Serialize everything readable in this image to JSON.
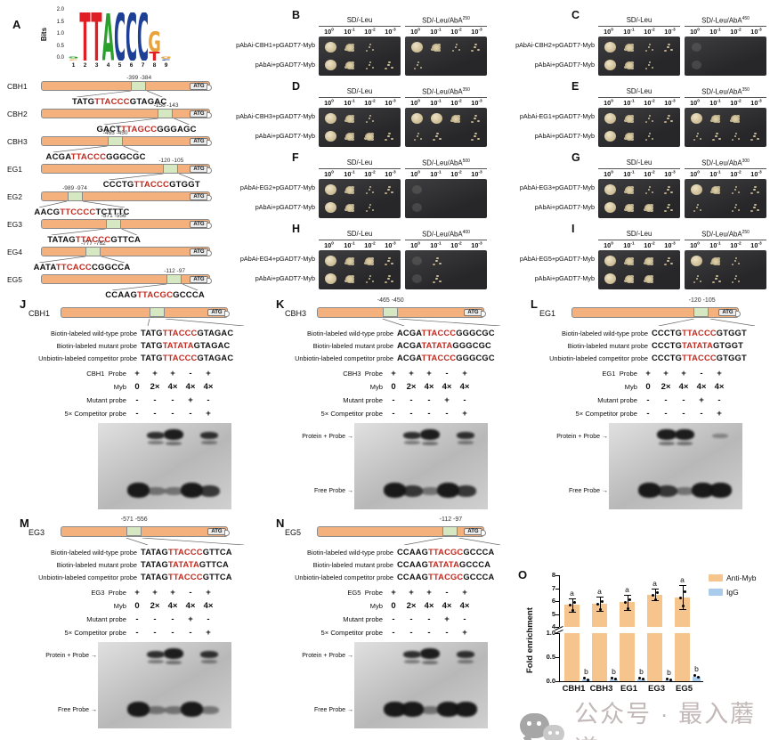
{
  "panelA": {
    "letter": "A",
    "logo": {
      "ylabel": "Bits",
      "yticks": [
        "2.0",
        "1.5",
        "1.0",
        "0.5",
        "0.0"
      ],
      "xticks": [
        "1",
        "2",
        "3",
        "4",
        "5",
        "6",
        "7",
        "8",
        "9"
      ],
      "consensus": "TTACCCG",
      "columns": [
        {
          "letters": [
            {
              "char": "a",
              "color": "#2ca02c",
              "h": 0.1
            },
            {
              "char": "c",
              "color": "#e8a33d",
              "h": 0.08
            }
          ]
        },
        {
          "letters": [
            {
              "char": "T",
              "color": "#e01e25",
              "h": 2.0
            }
          ]
        },
        {
          "letters": [
            {
              "char": "T",
              "color": "#e01e25",
              "h": 2.0
            }
          ]
        },
        {
          "letters": [
            {
              "char": "A",
              "color": "#2ca02c",
              "h": 1.95
            }
          ]
        },
        {
          "letters": [
            {
              "char": "C",
              "color": "#1d3f95",
              "h": 2.0
            }
          ]
        },
        {
          "letters": [
            {
              "char": "C",
              "color": "#1d3f95",
              "h": 2.0
            }
          ]
        },
        {
          "letters": [
            {
              "char": "C",
              "color": "#1d3f95",
              "h": 2.0
            }
          ]
        },
        {
          "letters": [
            {
              "char": "G",
              "color": "#e8a33d",
              "h": 0.85
            },
            {
              "char": "T",
              "color": "#e01e25",
              "h": 0.38
            }
          ]
        },
        {
          "letters": [
            {
              "char": "g",
              "color": "#e8a33d",
              "h": 0.1
            },
            {
              "char": "c",
              "color": "#1d3f95",
              "h": 0.08
            }
          ]
        }
      ]
    },
    "atg_label": "ATG",
    "genes": [
      {
        "name": "CBH1",
        "positions": "-399  -384",
        "site_pct": 58,
        "seq_pre": "TATG",
        "seq_motif": "TTACCC",
        "seq_post": "GTAGAC"
      },
      {
        "name": "CBH2",
        "positions": "-158  -143",
        "site_pct": 74,
        "seq_pre": "GACT",
        "seq_motif": "TTAGCC",
        "seq_post": "GGGAGC"
      },
      {
        "name": "CBH3",
        "positions": "-465  -450",
        "site_pct": 44,
        "seq_pre": "ACGA",
        "seq_motif": "TTACCC",
        "seq_post": "GGGCGC"
      },
      {
        "name": "EG1",
        "positions": "-120  -105",
        "site_pct": 77,
        "seq_pre": "CCCTG",
        "seq_motif": "TTACCC",
        "seq_post": "GTGGT"
      },
      {
        "name": "EG2",
        "positions": "-989  -974",
        "site_pct": 20,
        "seq_pre": "AACG",
        "seq_motif": "TTCCCC",
        "seq_post": "TCTTTC"
      },
      {
        "name": "EG3",
        "positions": "-571  -556",
        "site_pct": 43,
        "seq_pre": "TATAG",
        "seq_motif": "TTACCC",
        "seq_post": "GTTCA"
      },
      {
        "name": "EG4",
        "positions": "-777  -762",
        "site_pct": 31,
        "seq_pre": "AATA",
        "seq_motif": "TTCACC",
        "seq_post": "CGGCCA"
      },
      {
        "name": "EG5",
        "positions": "-112   -97",
        "site_pct": 79,
        "seq_pre": "CCAAG",
        "seq_motif": "TTACGC",
        "seq_post": "GCCCA"
      }
    ]
  },
  "y1h": {
    "media_control": "SD/-Leu",
    "dilution_exponents": [
      "0",
      "-1",
      "-2",
      "-3"
    ],
    "panels": [
      {
        "letter": "B",
        "aba_label": "SD/-Leu/AbA",
        "aba_sup": "250",
        "rows": [
          "pAbAi-CBH1+pGADT7-Myb",
          "pAbAi+pGADT7-Myb"
        ],
        "left_spots": [
          [
            3,
            2,
            1,
            0
          ],
          [
            3,
            2,
            1,
            1
          ]
        ],
        "right_spots": [
          [
            3,
            2,
            1,
            1
          ],
          [
            1,
            0,
            0,
            0
          ]
        ]
      },
      {
        "letter": "C",
        "aba_label": "SD/-Leu/AbA",
        "aba_sup": "450",
        "rows": [
          "pAbAi-CBH2+pGADT7-Myb",
          "pAbAi+pGADT7-Myb"
        ],
        "left_spots": [
          [
            3,
            2,
            1,
            1
          ],
          [
            3,
            2,
            1,
            0
          ]
        ],
        "right_spots": [
          [
            4,
            0,
            0,
            0
          ],
          [
            4,
            0,
            0,
            0
          ]
        ]
      },
      {
        "letter": "D",
        "aba_label": "SD/-Leu/AbA",
        "aba_sup": "350",
        "rows": [
          "pAbAi-CBH3+pGADT7-Myb",
          "pAbAi+pGADT7-Myb"
        ],
        "left_spots": [
          [
            3,
            2,
            1,
            0
          ],
          [
            3,
            2,
            2,
            1
          ]
        ],
        "right_spots": [
          [
            3,
            3,
            2,
            1
          ],
          [
            1,
            1,
            0,
            1
          ]
        ]
      },
      {
        "letter": "E",
        "aba_label": "SD/-Leu/AbA",
        "aba_sup": "350",
        "rows": [
          "pAbAi-EG1+pGADT7-Myb",
          "pAbAi+pGADT7-Myb"
        ],
        "left_spots": [
          [
            3,
            2,
            1,
            1
          ],
          [
            3,
            2,
            1,
            0
          ]
        ],
        "right_spots": [
          [
            3,
            2,
            2,
            0
          ],
          [
            1,
            1,
            1,
            1
          ]
        ]
      },
      {
        "letter": "F",
        "aba_label": "SD/-Leu/AbA",
        "aba_sup": "500",
        "rows": [
          "pAbAi-EG2+pGADT7-Myb",
          "pAbAi+pGADT7-Myb"
        ],
        "left_spots": [
          [
            3,
            2,
            1,
            1
          ],
          [
            3,
            2,
            1,
            0
          ]
        ],
        "right_spots": [
          [
            4,
            0,
            0,
            0
          ],
          [
            4,
            0,
            0,
            0
          ]
        ]
      },
      {
        "letter": "G",
        "aba_label": "SD/-Leu/AbA",
        "aba_sup": "300",
        "rows": [
          "pAbAi-EG3+pGADT7-Myb",
          "pAbAi+pGADT7-Myb"
        ],
        "left_spots": [
          [
            3,
            2,
            1,
            1
          ],
          [
            3,
            2,
            2,
            1
          ]
        ],
        "right_spots": [
          [
            3,
            2,
            1,
            1
          ],
          [
            1,
            0,
            1,
            1
          ]
        ]
      },
      {
        "letter": "H",
        "aba_label": "SD/-Leu/AbA",
        "aba_sup": "400",
        "rows": [
          "pAbAi-EG4+pGADT7-Myb",
          "pAbAi+pGADT7-Myb"
        ],
        "left_spots": [
          [
            3,
            2,
            2,
            1
          ],
          [
            3,
            2,
            1,
            1
          ]
        ],
        "right_spots": [
          [
            4,
            1,
            0,
            0
          ],
          [
            4,
            1,
            0,
            0
          ]
        ]
      },
      {
        "letter": "I",
        "aba_label": "SD/-Leu/AbA",
        "aba_sup": "250",
        "rows": [
          "pAbAi-EG5+pGADT7-Myb",
          "pAbAi+pGADT7-Myb"
        ],
        "left_spots": [
          [
            3,
            2,
            2,
            1
          ],
          [
            3,
            2,
            2,
            0
          ]
        ],
        "right_spots": [
          [
            3,
            2,
            1,
            0
          ],
          [
            1,
            1,
            1,
            0
          ]
        ]
      }
    ]
  },
  "emsa": {
    "probe_labels": [
      "Biotin-labeled wild-type probe",
      "Biotin-labeled mutant probe",
      "Unbiotin-labeled competitor probe"
    ],
    "cond_probe_suffix": "Probe",
    "myb_label": "Myb",
    "mutant_label": "Mutant probe",
    "competitor_label": "5× Competitor probe",
    "probe_vals": [
      "+",
      "+",
      "+",
      "-",
      "+"
    ],
    "myb_vals": [
      "0",
      "2×",
      "4×",
      "4×",
      "4×"
    ],
    "mutant_vals": [
      "-",
      "-",
      "-",
      "+",
      "-"
    ],
    "competitor_vals": [
      "-",
      "-",
      "-",
      "-",
      "+"
    ],
    "shift_label": "Protein + Probe",
    "free_label": "Free Probe",
    "atg_label": "ATG",
    "panels": [
      {
        "letter": "J",
        "gene": "CBH1",
        "positions": "",
        "site_pct": 58,
        "wt": [
          "TATG",
          "TTACCC",
          "GTAGAC"
        ],
        "mut": [
          "TATG",
          "TATATA",
          "GTAGAC"
        ],
        "comp": [
          "TATG",
          "TTACCC",
          "GTAGAC"
        ],
        "shift_bands": [
          0,
          2,
          3,
          0,
          2
        ],
        "free_bands": [
          3,
          1,
          1,
          3,
          2
        ],
        "gel_labels": false
      },
      {
        "letter": "K",
        "gene": "CBH3",
        "positions": "-465  -450",
        "site_pct": 44,
        "wt": [
          "ACGA",
          "TTACCC",
          "GGGCGC"
        ],
        "mut": [
          "ACGA",
          "TATATA",
          "GGGCGC"
        ],
        "comp": [
          "ACGA",
          "TTACCC",
          "GGGCGC"
        ],
        "shift_bands": [
          0,
          2,
          3,
          0,
          2
        ],
        "free_bands": [
          3,
          2,
          1,
          3,
          2
        ],
        "gel_labels": true
      },
      {
        "letter": "L",
        "gene": "EG1",
        "positions": "-120  -105",
        "site_pct": 78,
        "wt": [
          "CCCTG",
          "TTACCC",
          "GTGGT"
        ],
        "mut": [
          "CCCTG",
          "TATATA",
          "GTGGT"
        ],
        "comp": [
          "CCCTG",
          "TTACCC",
          "GTGGT"
        ],
        "shift_bands": [
          0,
          3,
          3,
          0,
          1
        ],
        "free_bands": [
          3,
          2,
          1,
          3,
          3
        ],
        "gel_labels": true
      },
      {
        "letter": "M",
        "gene": "EG3",
        "positions": "-571  -556",
        "site_pct": 44,
        "wt": [
          "TATAG",
          "TTACCC",
          "GTTCA"
        ],
        "mut": [
          "TATAG",
          "TATATA",
          "GTTCA"
        ],
        "comp": [
          "TATAG",
          "TTACCC",
          "GTTCA"
        ],
        "shift_bands": [
          0,
          2,
          3,
          0,
          2
        ],
        "free_bands": [
          3,
          1,
          1,
          3,
          1
        ],
        "gel_labels": true
      },
      {
        "letter": "N",
        "gene": "EG5",
        "positions": "-112   -97",
        "site_pct": 80,
        "wt": [
          "CCAAG",
          "TTACGC",
          "GCCCA"
        ],
        "mut": [
          "CCAAG",
          "TATATA",
          "GCCCA"
        ],
        "comp": [
          "CCAAG",
          "TTACGC",
          "GCCCA"
        ],
        "shift_bands": [
          0,
          2,
          3,
          0,
          2
        ],
        "free_bands": [
          3,
          3,
          1,
          3,
          3
        ],
        "gel_labels": true
      }
    ]
  },
  "chart_data": {
    "type": "bar",
    "panel_letter": "O",
    "categories": [
      "CBH1",
      "CBH3",
      "EG1",
      "EG3",
      "EG5"
    ],
    "series": [
      {
        "name": "Anti-Myb",
        "color": "#f6c58e",
        "values": [
          5.7,
          5.8,
          5.9,
          6.5,
          6.3
        ],
        "errors": [
          0.5,
          0.55,
          0.6,
          0.45,
          0.95
        ],
        "sig": [
          "a",
          "a",
          "a",
          "a",
          "a"
        ]
      },
      {
        "name": "IgG",
        "color": "#a9cbec",
        "values": [
          0.03,
          0.04,
          0.04,
          0.02,
          0.09
        ],
        "errors": [
          0.02,
          0.03,
          0.03,
          0.02,
          0.05
        ],
        "sig": [
          "b",
          "b",
          "b",
          "b",
          "b"
        ]
      }
    ],
    "ylabel": "Fold enrichment",
    "xlabel": "",
    "y_axis_break": true,
    "y_top_range": [
      4,
      8
    ],
    "y_top_ticks": [
      "8",
      "7",
      "6",
      "5",
      "4"
    ],
    "y_bottom_range": [
      0,
      1
    ],
    "y_bottom_ticks": [
      "1.0",
      "0.5",
      "0.0"
    ],
    "legend_position": "top-right",
    "grid": false
  },
  "watermark": {
    "text": "公众号 · 最入蘑道"
  }
}
